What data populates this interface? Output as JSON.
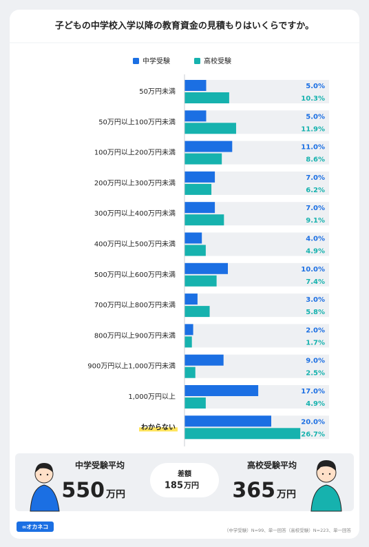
{
  "chart_data": {
    "type": "bar",
    "orientation": "horizontal",
    "title": "子どもの中学校入学以降の教育資金の見積もりはいくらですか。",
    "categories": [
      "50万円未満",
      "50万円以上100万円未満",
      "100万円以上200万円未満",
      "200万円以上300万円未満",
      "300万円以上400万円未満",
      "400万円以上500万円未満",
      "500万円以上600万円未満",
      "700万円以上800万円未満",
      "800万円以上900万円未満",
      "900万円以上1,000万円未満",
      "1,000万円以上",
      "わからない"
    ],
    "highlight_index": 11,
    "series": [
      {
        "name": "中学受験",
        "color": "#1b6fe3",
        "values": [
          5.0,
          5.0,
          11.0,
          7.0,
          7.0,
          4.0,
          10.0,
          3.0,
          2.0,
          9.0,
          17.0,
          20.0
        ],
        "value_labels": [
          "5.0%",
          "5.0%",
          "11.0%",
          "7.0%",
          "7.0%",
          "4.0%",
          "10.0%",
          "3.0%",
          "2.0%",
          "9.0%",
          "17.0%",
          "20.0%"
        ]
      },
      {
        "name": "高校受験",
        "color": "#16b2ae",
        "values": [
          10.3,
          11.9,
          8.6,
          6.2,
          9.1,
          4.9,
          7.4,
          5.8,
          1.7,
          2.5,
          4.9,
          26.7
        ],
        "value_labels": [
          "10.3%",
          "11.9%",
          "8.6%",
          "6.2%",
          "9.1%",
          "4.9%",
          "7.4%",
          "5.8%",
          "1.7%",
          "2.5%",
          "4.9%",
          "26.7%"
        ]
      }
    ]
  },
  "summary": {
    "left": {
      "label": "中学受験平均",
      "value": 550,
      "unit": "万円"
    },
    "difference": {
      "label": "差額",
      "value": 185,
      "unit": "万円"
    },
    "right": {
      "label": "高校受験平均",
      "value": 365,
      "unit": "万円"
    }
  },
  "footnote": "（中学受験）N=99、単一回答（高校受験）N=223、単一回答",
  "logo": "∞オカネコ"
}
